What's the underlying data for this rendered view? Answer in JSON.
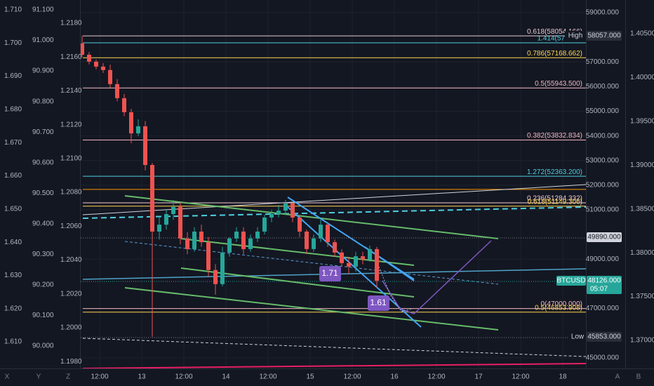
{
  "chart_data": {
    "type": "candlestick",
    "x": [
      7,
      9,
      11,
      13,
      15,
      17,
      19,
      21,
      23,
      25,
      27,
      29,
      31,
      33,
      35,
      37,
      39,
      41,
      43,
      45,
      47,
      49,
      51,
      53,
      55,
      57,
      59,
      61,
      63,
      65,
      67,
      69,
      71,
      73,
      75,
      77,
      79,
      81,
      83,
      85,
      87,
      89,
      91
    ],
    "open": [
      57750,
      57290,
      57010,
      56810,
      56670,
      56100,
      55530,
      54960,
      54100,
      54390,
      52820,
      50120,
      50400,
      50830,
      51120,
      49840,
      49410,
      50120,
      49690,
      48560,
      47990,
      49270,
      49840,
      50120,
      49410,
      49840,
      50120,
      50690,
      50830,
      50970,
      51260,
      50690,
      50120,
      49410,
      49840,
      50400,
      49690,
      49270,
      48840,
      48700,
      49120,
      48980,
      49410
    ],
    "high": [
      58057,
      57400,
      57100,
      56950,
      56890,
      56300,
      55700,
      55100,
      54670,
      54600,
      52900,
      50700,
      51000,
      51400,
      51300,
      50100,
      50300,
      50400,
      49900,
      48800,
      49500,
      49900,
      50300,
      50300,
      50000,
      50300,
      50800,
      51000,
      51200,
      51400,
      51300,
      50800,
      50200,
      50000,
      50630,
      50500,
      49800,
      49400,
      49100,
      49300,
      49300,
      49550,
      49500
    ],
    "low": [
      57200,
      56900,
      56700,
      56550,
      55950,
      55400,
      54800,
      53700,
      54000,
      52600,
      45853,
      49800,
      50200,
      50600,
      49600,
      49200,
      49300,
      49500,
      48300,
      47560,
      47900,
      49100,
      49700,
      49200,
      49300,
      49700,
      50000,
      50500,
      50700,
      50800,
      50500,
      49900,
      49200,
      49300,
      49700,
      49500,
      49100,
      48700,
      48400,
      48500,
      48800,
      48900,
      47840
    ],
    "close": [
      57290,
      57010,
      56810,
      56670,
      56100,
      55530,
      54960,
      54100,
      54390,
      52820,
      50120,
      50400,
      50830,
      51120,
      49840,
      49410,
      50120,
      49690,
      48560,
      47990,
      49270,
      49840,
      50120,
      49410,
      49840,
      50120,
      50690,
      50830,
      50970,
      51260,
      50690,
      50120,
      49410,
      49840,
      50400,
      49690,
      49270,
      48840,
      48700,
      49120,
      48980,
      49410,
      48126
    ],
    "up_color": "#26a69a",
    "down_color": "#ef5350",
    "xlim": [
      6.6,
      150.6
    ],
    "xticks": [
      {
        "value": 12,
        "label": "12:00"
      },
      {
        "value": 24,
        "label": "13"
      },
      {
        "value": 36,
        "label": "12:00"
      },
      {
        "value": 48,
        "label": "14"
      },
      {
        "value": 60,
        "label": "12:00"
      },
      {
        "value": 72,
        "label": "15"
      },
      {
        "value": 84,
        "label": "12:00"
      },
      {
        "value": 96,
        "label": "16"
      },
      {
        "value": 108,
        "label": "12:00"
      },
      {
        "value": 120,
        "label": "17"
      },
      {
        "value": 132,
        "label": "12:00"
      },
      {
        "value": 144,
        "label": "18"
      }
    ],
    "ylim": [
      44570,
      59510
    ],
    "yticks": [
      {
        "value": 59000,
        "label": "59000.000"
      },
      {
        "value": 57000,
        "label": "57000.000"
      },
      {
        "value": 56000,
        "label": "56000.000"
      },
      {
        "value": 55000,
        "label": "55000.000"
      },
      {
        "value": 54000,
        "label": "54000.000"
      },
      {
        "value": 53000,
        "label": "53000.000"
      },
      {
        "value": 52000,
        "label": "52000.000"
      },
      {
        "value": 51000,
        "label": "51000.000"
      },
      {
        "value": 49000,
        "label": "49000.000"
      },
      {
        "value": 47000,
        "label": "47000.000"
      },
      {
        "value": 45000,
        "label": "45000.000"
      }
    ],
    "grid": true,
    "extra_axes": [
      {
        "ylim": [
          1.60197,
          1.71296
        ],
        "yticks": [
          {
            "value": 1.71,
            "label": "1.710"
          },
          {
            "value": 1.7,
            "label": "1.700"
          },
          {
            "value": 1.69,
            "label": "1.690"
          },
          {
            "value": 1.68,
            "label": "1.680"
          },
          {
            "value": 1.67,
            "label": "1.670"
          },
          {
            "value": 1.66,
            "label": "1.660"
          },
          {
            "value": 1.65,
            "label": "1.650"
          },
          {
            "value": 1.64,
            "label": "1.640"
          },
          {
            "value": 1.63,
            "label": "1.630"
          },
          {
            "value": 1.62,
            "label": "1.620"
          },
          {
            "value": 1.61,
            "label": "1.610"
          }
        ]
      },
      {
        "ylim": [
          89.9265,
          91.1322
        ],
        "yticks": [
          {
            "value": 91.1,
            "label": "91.100"
          },
          {
            "value": 91,
            "label": "91.000"
          },
          {
            "value": 90.9,
            "label": "90.900"
          },
          {
            "value": 90.8,
            "label": "90.800"
          },
          {
            "value": 90.7,
            "label": "90.700"
          },
          {
            "value": 90.6,
            "label": "90.600"
          },
          {
            "value": 90.5,
            "label": "90.500"
          },
          {
            "value": 90.4,
            "label": "90.400"
          },
          {
            "value": 90.3,
            "label": "90.300"
          },
          {
            "value": 90.2,
            "label": "90.200"
          },
          {
            "value": 90.1,
            "label": "90.100"
          },
          {
            "value": 90,
            "label": "90.000"
          }
        ]
      },
      {
        "ylim": [
          1.19759,
          1.21937
        ],
        "yticks": [
          {
            "value": 1.218,
            "label": "1.2180"
          },
          {
            "value": 1.216,
            "label": "1.2160"
          },
          {
            "value": 1.214,
            "label": "1.2140"
          },
          {
            "value": 1.212,
            "label": "1.2120"
          },
          {
            "value": 1.21,
            "label": "1.2100"
          },
          {
            "value": 1.208,
            "label": "1.2080"
          },
          {
            "value": 1.206,
            "label": "1.2060"
          },
          {
            "value": 1.204,
            "label": "1.2040"
          },
          {
            "value": 1.202,
            "label": "1.2020"
          },
          {
            "value": 1.2,
            "label": "1.2000"
          },
          {
            "value": 1.198,
            "label": "1.1980"
          }
        ]
      },
      {
        "ylim": [
          1.3668,
          1.40884
        ],
        "yticks": [
          {
            "value": 1.405,
            "label": "1.40500"
          },
          {
            "value": 1.4,
            "label": "1.40000"
          },
          {
            "value": 1.395,
            "label": "1.39500"
          },
          {
            "value": 1.39,
            "label": "1.39000"
          },
          {
            "value": 1.385,
            "label": "1.38500"
          },
          {
            "value": 1.38,
            "label": "1.38000"
          },
          {
            "value": 1.375,
            "label": "1.37500"
          },
          {
            "value": 1.37,
            "label": "1.37000"
          }
        ]
      }
    ],
    "levels": [
      {
        "value": 58054.166,
        "label": "0.618(58054.166)",
        "color": "#e8c9cf"
      },
      {
        "value": 57773.7,
        "label": "1.414(57773.7",
        "color": "#4dd0e1"
      },
      {
        "value": 57168.662,
        "label": "0.786(57168.662)",
        "color": "#ffd54f"
      },
      {
        "value": 55943.5,
        "label": "0.5(55943.500)",
        "color": "#f0b6c0"
      },
      {
        "value": 53832.834,
        "label": "0.382(53832.834)",
        "color": "#f0b6c0"
      },
      {
        "value": 52363.2,
        "label": "1.272(52363.200)",
        "color": "#4dd0e1"
      },
      {
        "value": 51830,
        "color": "#ff9800"
      },
      {
        "value": 51284.332,
        "label": "0.236(51284.332)",
        "color": "#f0c8d0"
      },
      {
        "value": 51149.306,
        "label": "0.618(51149.306)",
        "color": "#ffd54f"
      },
      {
        "value": 47000,
        "label": "0(47000.000)",
        "color": "#f0b6c0"
      },
      {
        "value": 46853.908,
        "label": "0.5(46853.908)",
        "color": "#ffd54f"
      }
    ],
    "badges": [
      {
        "name": "High",
        "value": 58057,
        "value_label": "58057.000",
        "style": "dark"
      },
      {
        "value": 49890,
        "value_label": "49890.000",
        "style": "light"
      },
      {
        "name": "BTCUSD",
        "value": 48126,
        "value_label": "48126.000",
        "countdown": "05:07",
        "style": "teal"
      },
      {
        "name": "Low",
        "value": 45853,
        "value_label": "45853.000",
        "style": "dark"
      }
    ],
    "annotations": [
      "1.71",
      "1.61"
    ],
    "corner_letters": [
      "X",
      "Y",
      "Z",
      "A",
      "B"
    ]
  }
}
